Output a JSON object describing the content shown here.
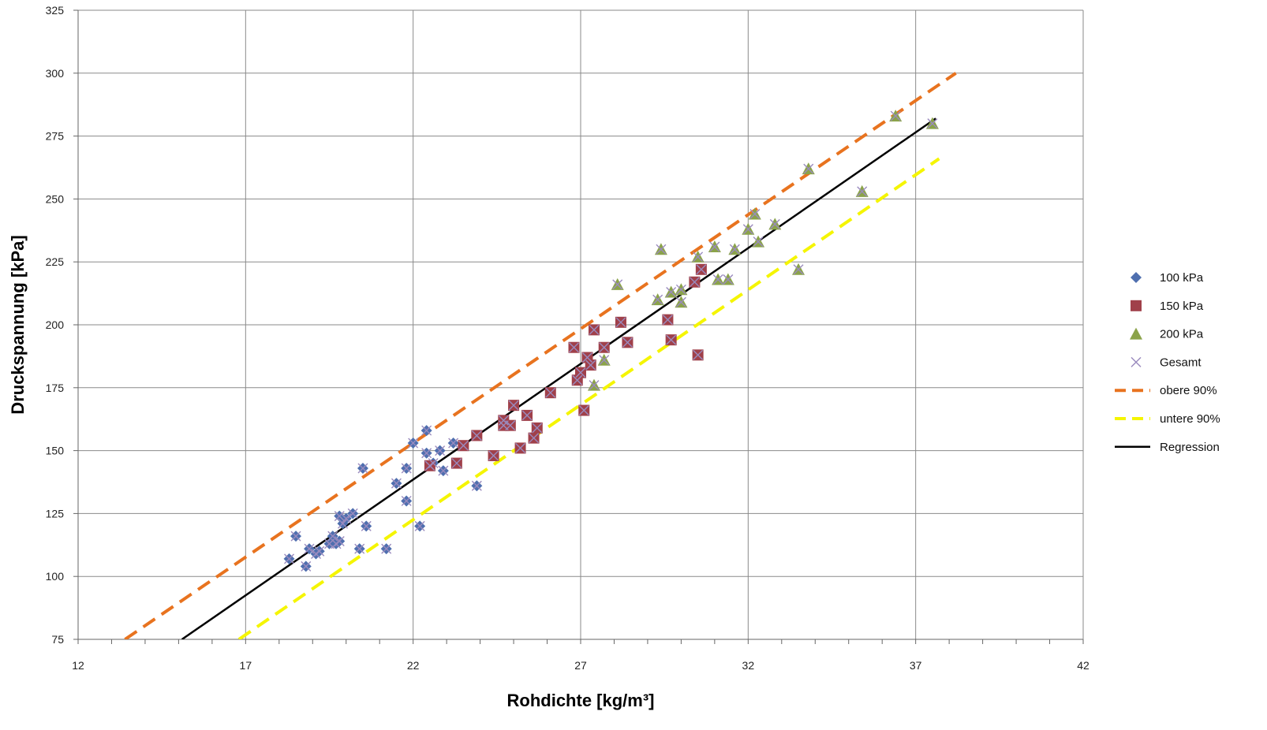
{
  "chart_data": {
    "type": "scatter",
    "xlabel": "Rohdichte [kg/m³]",
    "ylabel": "Druckspannung [kPa]",
    "xlim": [
      12,
      42
    ],
    "ylim": [
      75,
      325
    ],
    "x_ticks": [
      12,
      17,
      22,
      27,
      32,
      37,
      42
    ],
    "y_ticks": [
      75,
      100,
      125,
      150,
      175,
      200,
      225,
      250,
      275,
      300,
      325
    ],
    "grid": true,
    "legend_position": "right",
    "series": [
      {
        "name": "100 kPa",
        "marker": "diamond",
        "color": "#4F6FAF",
        "points": [
          [
            18.3,
            107
          ],
          [
            18.5,
            116
          ],
          [
            18.8,
            104
          ],
          [
            18.9,
            111
          ],
          [
            19.1,
            109
          ],
          [
            19.2,
            110
          ],
          [
            19.5,
            113
          ],
          [
            19.6,
            116
          ],
          [
            19.7,
            113
          ],
          [
            19.8,
            114
          ],
          [
            19.8,
            124
          ],
          [
            19.9,
            121
          ],
          [
            20.0,
            123
          ],
          [
            20.2,
            125
          ],
          [
            20.4,
            111
          ],
          [
            20.5,
            143
          ],
          [
            20.6,
            120
          ],
          [
            21.2,
            111
          ],
          [
            21.5,
            137
          ],
          [
            21.8,
            130
          ],
          [
            21.8,
            143
          ],
          [
            22.0,
            153
          ],
          [
            22.2,
            120
          ],
          [
            22.4,
            149
          ],
          [
            22.4,
            158
          ],
          [
            22.6,
            145
          ],
          [
            22.8,
            150
          ],
          [
            22.9,
            142
          ],
          [
            23.2,
            153
          ],
          [
            23.9,
            136
          ]
        ]
      },
      {
        "name": "150 kPa",
        "marker": "square",
        "color": "#A0404A",
        "points": [
          [
            22.5,
            144
          ],
          [
            23.3,
            145
          ],
          [
            23.5,
            152
          ],
          [
            23.9,
            156
          ],
          [
            24.4,
            148
          ],
          [
            24.7,
            162
          ],
          [
            24.7,
            160
          ],
          [
            24.9,
            160
          ],
          [
            25.0,
            168
          ],
          [
            25.2,
            151
          ],
          [
            25.4,
            164
          ],
          [
            25.6,
            155
          ],
          [
            25.7,
            159
          ],
          [
            26.1,
            173
          ],
          [
            26.8,
            191
          ],
          [
            26.9,
            178
          ],
          [
            27.0,
            181
          ],
          [
            27.1,
            166
          ],
          [
            27.2,
            187
          ],
          [
            27.3,
            184
          ],
          [
            27.4,
            198
          ],
          [
            27.7,
            191
          ],
          [
            28.2,
            201
          ],
          [
            28.4,
            193
          ],
          [
            29.6,
            202
          ],
          [
            29.7,
            194
          ],
          [
            30.4,
            217
          ],
          [
            30.5,
            188
          ],
          [
            30.6,
            222
          ]
        ]
      },
      {
        "name": "200 kPa",
        "marker": "triangle",
        "color": "#8BA34A",
        "points": [
          [
            27.4,
            176
          ],
          [
            27.7,
            186
          ],
          [
            28.1,
            216
          ],
          [
            29.3,
            210
          ],
          [
            29.4,
            230
          ],
          [
            29.7,
            213
          ],
          [
            30.0,
            214
          ],
          [
            30.0,
            209
          ],
          [
            30.5,
            227
          ],
          [
            31.0,
            231
          ],
          [
            31.1,
            218
          ],
          [
            31.4,
            218
          ],
          [
            31.6,
            230
          ],
          [
            32.0,
            238
          ],
          [
            32.2,
            244
          ],
          [
            32.3,
            233
          ],
          [
            32.8,
            240
          ],
          [
            33.5,
            222
          ],
          [
            33.8,
            262
          ],
          [
            35.4,
            253
          ],
          [
            36.4,
            283
          ],
          [
            37.5,
            280
          ]
        ]
      },
      {
        "name": "Gesamt",
        "marker": "x",
        "color": "#9A8BBE"
      },
      {
        "name": "obere 90%",
        "type": "line",
        "style": "dashed",
        "color": "#E8731F",
        "points": [
          [
            13.4,
            75
          ],
          [
            38.2,
            300
          ]
        ]
      },
      {
        "name": "untere 90%",
        "type": "line",
        "style": "dashed",
        "color": "#F5F500",
        "points": [
          [
            16.8,
            75
          ],
          [
            37.7,
            266
          ]
        ]
      },
      {
        "name": "Regression",
        "type": "line",
        "style": "solid",
        "color": "#000000",
        "points": [
          [
            15.1,
            75
          ],
          [
            37.6,
            282
          ]
        ]
      }
    ]
  }
}
